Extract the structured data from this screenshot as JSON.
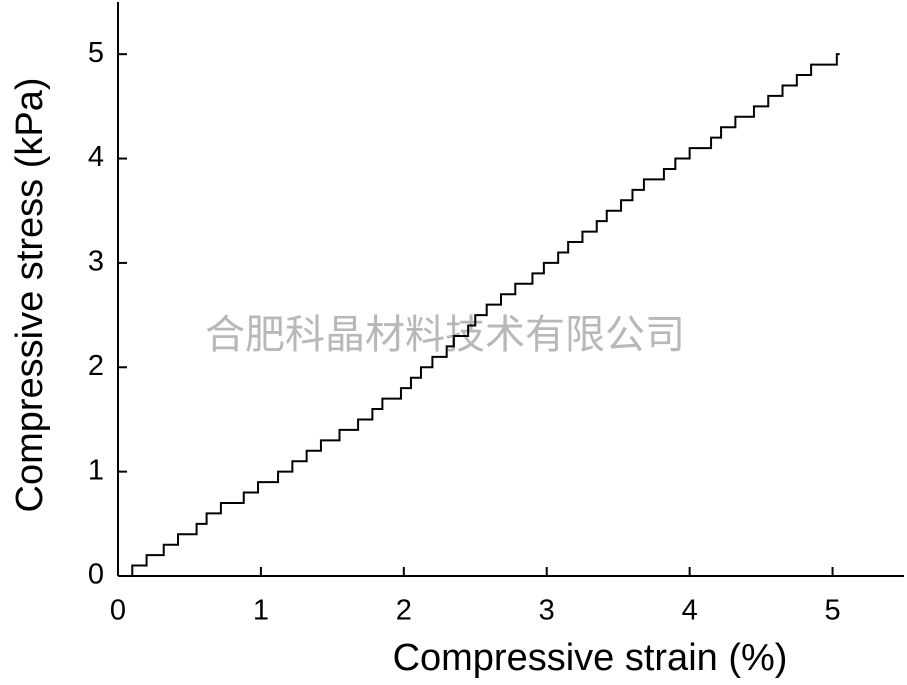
{
  "chart_data": {
    "type": "line",
    "xlabel": "Compressive strain (%)",
    "ylabel": "Compressive stress (kPa)",
    "annotation": "合肥科晶材料技术有限公司",
    "color": "#000000",
    "xlim": [
      0,
      5.5
    ],
    "ylim": [
      0,
      5.5
    ],
    "xticks": [
      0,
      1,
      2,
      3,
      4,
      5
    ],
    "yticks": [
      0,
      1,
      2,
      3,
      4,
      5
    ],
    "x": [
      0.07,
      0.1,
      0.1,
      0.2,
      0.2,
      0.32,
      0.32,
      0.42,
      0.42,
      0.55,
      0.55,
      0.62,
      0.62,
      0.72,
      0.72,
      0.88,
      0.88,
      0.98,
      0.98,
      1.12,
      1.12,
      1.22,
      1.22,
      1.32,
      1.32,
      1.42,
      1.42,
      1.55,
      1.55,
      1.68,
      1.68,
      1.78,
      1.78,
      1.85,
      1.85,
      1.98,
      1.98,
      2.05,
      2.05,
      2.12,
      2.12,
      2.2,
      2.2,
      2.3,
      2.3,
      2.35,
      2.35,
      2.45,
      2.45,
      2.5,
      2.5,
      2.58,
      2.58,
      2.68,
      2.68,
      2.78,
      2.78,
      2.9,
      2.9,
      2.98,
      2.98,
      3.08,
      3.08,
      3.15,
      3.15,
      3.25,
      3.25,
      3.35,
      3.35,
      3.42,
      3.42,
      3.52,
      3.52,
      3.6,
      3.6,
      3.68,
      3.68,
      3.82,
      3.82,
      3.9,
      3.9,
      4.0,
      4.0,
      4.15,
      4.15,
      4.22,
      4.22,
      4.32,
      4.32,
      4.45,
      4.45,
      4.55,
      4.55,
      4.65,
      4.65,
      4.75,
      4.75,
      4.85,
      4.85,
      5.03,
      5.03,
      5.05
    ],
    "values": [
      0,
      0,
      0.1,
      0.1,
      0.2,
      0.2,
      0.3,
      0.3,
      0.4,
      0.4,
      0.5,
      0.5,
      0.6,
      0.6,
      0.7,
      0.7,
      0.8,
      0.8,
      0.9,
      0.9,
      1.0,
      1.0,
      1.1,
      1.1,
      1.2,
      1.2,
      1.3,
      1.3,
      1.4,
      1.4,
      1.5,
      1.5,
      1.6,
      1.6,
      1.7,
      1.7,
      1.8,
      1.8,
      1.9,
      1.9,
      2.0,
      2.0,
      2.1,
      2.1,
      2.2,
      2.2,
      2.3,
      2.3,
      2.4,
      2.4,
      2.5,
      2.5,
      2.6,
      2.6,
      2.7,
      2.7,
      2.8,
      2.8,
      2.9,
      2.9,
      3.0,
      3.0,
      3.1,
      3.1,
      3.2,
      3.2,
      3.3,
      3.3,
      3.4,
      3.4,
      3.5,
      3.5,
      3.6,
      3.6,
      3.7,
      3.7,
      3.8,
      3.8,
      3.9,
      3.9,
      4.0,
      4.0,
      4.1,
      4.1,
      4.2,
      4.2,
      4.3,
      4.3,
      4.4,
      4.4,
      4.5,
      4.5,
      4.6,
      4.6,
      4.7,
      4.7,
      4.8,
      4.8,
      4.9,
      4.9,
      5.0,
      5.0
    ]
  }
}
